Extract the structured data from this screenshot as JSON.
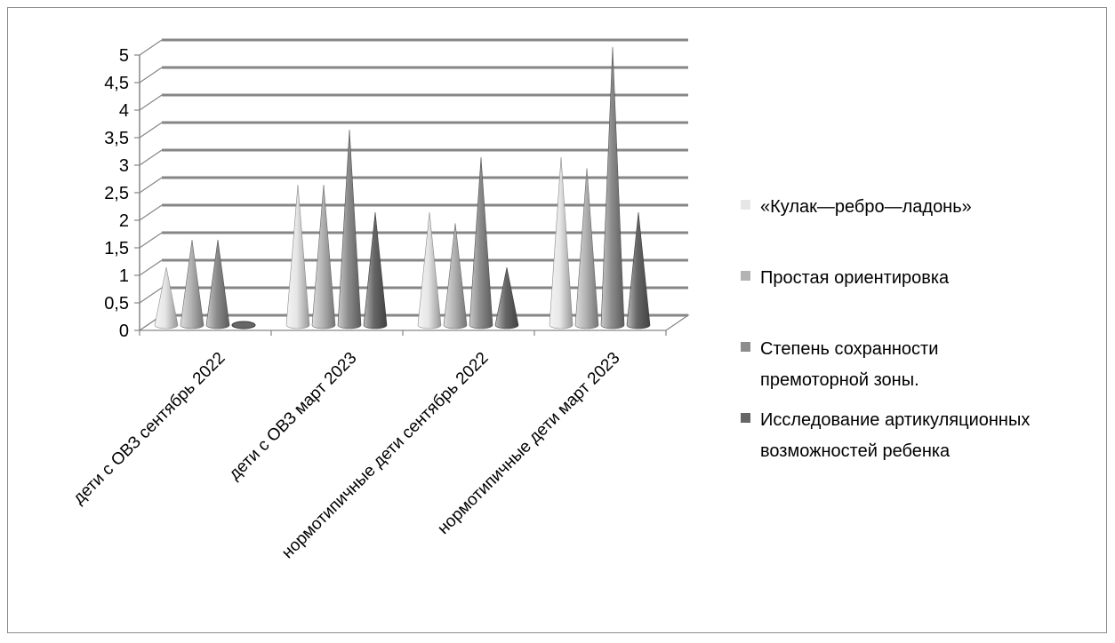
{
  "chart_data": {
    "type": "bar",
    "shape": "cone",
    "categories": [
      "дети с ОВЗ сентябрь 2022",
      "дети с ОВЗ март 2023",
      "нормотипичные дети сентябрь 2022",
      "нормотипичные дети март 2023"
    ],
    "series": [
      {
        "name": "«Кулак—ребро—ладонь»",
        "values": [
          1,
          2.5,
          2,
          3
        ],
        "color": "#e6e6e6"
      },
      {
        "name": "Простая ориентировка",
        "values": [
          1.5,
          2.5,
          1.8,
          2.8
        ],
        "color": "#b3b3b3"
      },
      {
        "name": "Степень сохранности премоторной зоны.",
        "values": [
          1.5,
          3.5,
          3,
          5
        ],
        "color": "#8c8c8c"
      },
      {
        "name": "Исследование артикуляционных возможностей ребенка",
        "values": [
          0,
          2,
          1,
          2
        ],
        "color": "#666666"
      }
    ],
    "yticks": [
      "0",
      "0,5",
      "1",
      "1,5",
      "2",
      "2,5",
      "3",
      "3,5",
      "4",
      "4,5",
      "5"
    ],
    "ylim": [
      0,
      5
    ],
    "grid": true,
    "legend": "right",
    "title": "",
    "xlabel": "",
    "ylabel": ""
  }
}
